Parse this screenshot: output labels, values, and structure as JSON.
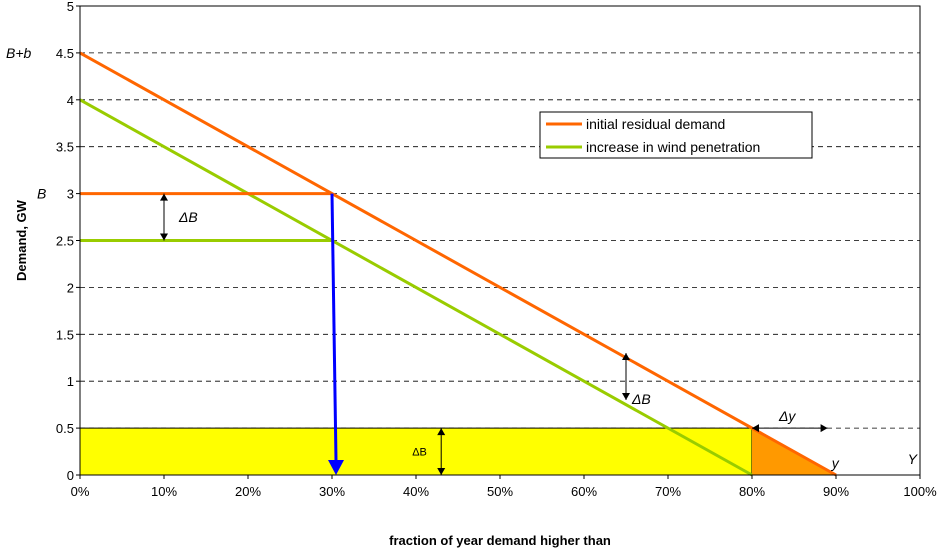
{
  "chart_data": {
    "type": "line",
    "xlabel": "fraction of year demand higher than",
    "ylabel": "Demand, GW",
    "xlim": [
      0,
      100
    ],
    "ylim": [
      0,
      5
    ],
    "x_ticks": [
      "0%",
      "10%",
      "20%",
      "30%",
      "40%",
      "50%",
      "60%",
      "70%",
      "80%",
      "90%",
      "100%"
    ],
    "y_ticks": [
      "0",
      "0.5",
      "1",
      "1.5",
      "2",
      "2.5",
      "3",
      "3.5",
      "4",
      "4.5",
      "5"
    ],
    "grid": "horizontal dashed",
    "legend_position": "top-right",
    "series": [
      {
        "name": "initial residual demand",
        "color": "#FF6600",
        "x": [
          0,
          90
        ],
        "y": [
          4.5,
          0
        ]
      },
      {
        "name": "increase in wind penetration",
        "color": "#99CC00",
        "x": [
          0,
          80
        ],
        "y": [
          4.0,
          0
        ]
      }
    ],
    "overlays": {
      "baseload_initial": {
        "y": 3.0,
        "x": [
          0,
          30
        ],
        "color": "#FF6600"
      },
      "baseload_new": {
        "y": 2.5,
        "x": [
          0,
          30
        ],
        "color": "#99CC00"
      },
      "drop_arrow": {
        "x": 30,
        "y": [
          3.0,
          0
        ],
        "color": "#0000FF"
      },
      "yellow_area": {
        "x": [
          0,
          80
        ],
        "y": [
          0,
          0.5
        ],
        "color": "#FFFF00"
      },
      "orange_triangle": {
        "x": [
          80,
          90
        ],
        "y_top": 0.5,
        "color": "#FF9900"
      },
      "delta_y_arrow": {
        "x": [
          80,
          89
        ],
        "y": 0.5
      },
      "delta_B_left_arrow": {
        "x": 10,
        "y": [
          2.5,
          3.0
        ]
      },
      "delta_B_right_arrow": {
        "x": 65,
        "y": [
          0.8,
          1.3
        ]
      },
      "delta_B_box_arrow": {
        "x": 43,
        "y": [
          0.0,
          0.5
        ]
      }
    },
    "annotations": {
      "y_B_plus_b": "B+b",
      "y_B": "B",
      "delta_B_left": "ΔB",
      "delta_B_right": "ΔB",
      "delta_B_box": "ΔB",
      "delta_y": "Δy",
      "small_y": "y",
      "big_Y": "Y"
    }
  }
}
